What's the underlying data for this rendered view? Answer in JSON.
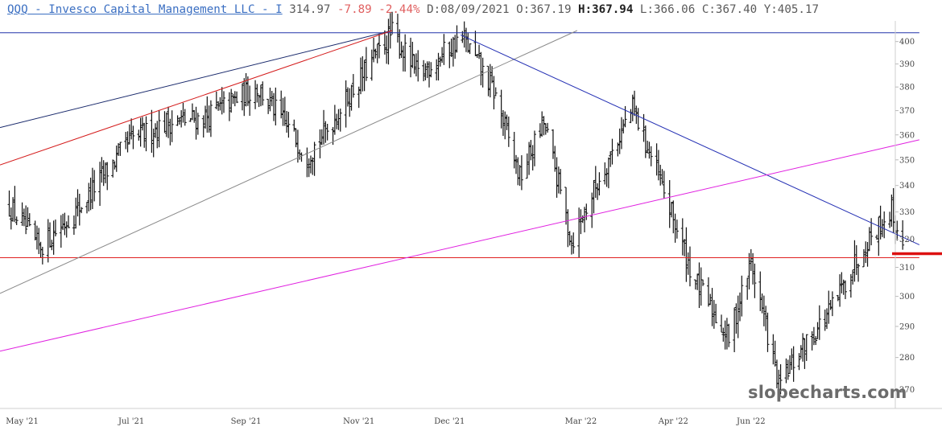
{
  "header": {
    "symbol_title": "QQQ - Invesco Capital Management LLC - I",
    "last": "314.97",
    "change": "-7.89",
    "change_pct": "-2.44%",
    "date_label": "D:",
    "date": "08/09/2021",
    "open_label": "O:",
    "open": "367.19",
    "high_label": "H:",
    "high": "367.94",
    "low_label": "L:",
    "low": "366.06",
    "close_label": "C:",
    "close": "367.40",
    "y_label": "Y:",
    "y": "405.17"
  },
  "watermark": "slopecharts.com",
  "chart_data": {
    "type": "ohlc",
    "symbol": "QQQ",
    "ylim": [
      267,
      405
    ],
    "y_scale": "log",
    "y_ticks": [
      270,
      280,
      290,
      300,
      310,
      320,
      330,
      340,
      350,
      360,
      370,
      380,
      390,
      400
    ],
    "x_range": [
      "2021-04-21",
      "2022-08-18"
    ],
    "x_ticks": [
      {
        "date": "2021-05-03",
        "label": "May '21"
      },
      {
        "date": "2021-07-01",
        "label": "Jul '21"
      },
      {
        "date": "2021-09-01",
        "label": "Sep '21"
      },
      {
        "date": "2021-11-01",
        "label": "Nov '21"
      },
      {
        "date": "2021-12-20",
        "label": "Dec '21"
      },
      {
        "date": "2022-03-01",
        "label": "Mar '22"
      },
      {
        "date": "2022-04-20",
        "label": "Apr '22"
      },
      {
        "date": "2022-06-01",
        "label": "Jun '22"
      }
    ],
    "bars_summary": [
      {
        "date": "2021-04-26",
        "close": 332
      },
      {
        "date": "2021-05-12",
        "close": 317
      },
      {
        "date": "2021-06-01",
        "close": 330
      },
      {
        "date": "2021-07-01",
        "close": 358
      },
      {
        "date": "2021-07-20",
        "close": 365
      },
      {
        "date": "2021-08-10",
        "close": 367
      },
      {
        "date": "2021-09-07",
        "close": 380
      },
      {
        "date": "2021-10-04",
        "close": 352
      },
      {
        "date": "2021-10-13",
        "close": 360
      },
      {
        "date": "2021-11-19",
        "close": 404
      },
      {
        "date": "2021-12-03",
        "close": 385
      },
      {
        "date": "2021-12-27",
        "close": 402
      },
      {
        "date": "2022-01-13",
        "close": 378
      },
      {
        "date": "2022-01-27",
        "close": 343
      },
      {
        "date": "2022-02-09",
        "close": 365
      },
      {
        "date": "2022-02-24",
        "close": 319
      },
      {
        "date": "2022-03-29",
        "close": 371
      },
      {
        "date": "2022-04-11",
        "close": 345
      },
      {
        "date": "2022-05-01",
        "close": 306
      },
      {
        "date": "2022-05-20",
        "close": 286
      },
      {
        "date": "2022-06-01",
        "close": 312
      },
      {
        "date": "2022-06-16",
        "close": 271
      },
      {
        "date": "2022-06-30",
        "close": 284
      },
      {
        "date": "2022-07-15",
        "close": 296
      },
      {
        "date": "2022-08-01",
        "close": 318
      },
      {
        "date": "2022-08-16",
        "close": 331
      },
      {
        "date": "2022-08-22",
        "close": 315
      }
    ],
    "lines": [
      {
        "name": "top-horizontal",
        "color": "#2233aa",
        "p1": {
          "date": "2021-04-21",
          "value": 404
        },
        "p2": {
          "date": "2022-08-31",
          "value": 404
        }
      },
      {
        "name": "support-horizontal",
        "color": "#e02020",
        "p1": {
          "date": "2021-04-21",
          "value": 313.4
        },
        "p2": {
          "date": "2022-08-31",
          "value": 313.4
        }
      },
      {
        "name": "navy-trendline",
        "color": "#1a2a6c",
        "p1": {
          "date": "2021-04-21",
          "value": 363
        },
        "p2": {
          "date": "2021-11-19",
          "value": 405
        }
      },
      {
        "name": "red-trendline",
        "color": "#d41c1c",
        "p1": {
          "date": "2021-04-21",
          "value": 348
        },
        "p2": {
          "date": "2021-11-19",
          "value": 405
        }
      },
      {
        "name": "gray-channel",
        "color": "#8a8a8a",
        "p1": {
          "date": "2021-04-21",
          "value": 301
        },
        "p2": {
          "date": "2022-02-27",
          "value": 405
        }
      },
      {
        "name": "blue-down-trendline",
        "color": "#2430b4",
        "p1": {
          "date": "2021-12-26",
          "value": 403
        },
        "p2": {
          "date": "2022-08-31",
          "value": 318
        }
      },
      {
        "name": "magenta-trendline",
        "color": "#e020e0",
        "p1": {
          "date": "2021-04-21",
          "value": 282
        },
        "p2": {
          "date": "2022-08-31",
          "value": 358
        }
      }
    ],
    "grid": false,
    "colors": {
      "bars": "#111111",
      "axis": "#cccccc"
    }
  }
}
